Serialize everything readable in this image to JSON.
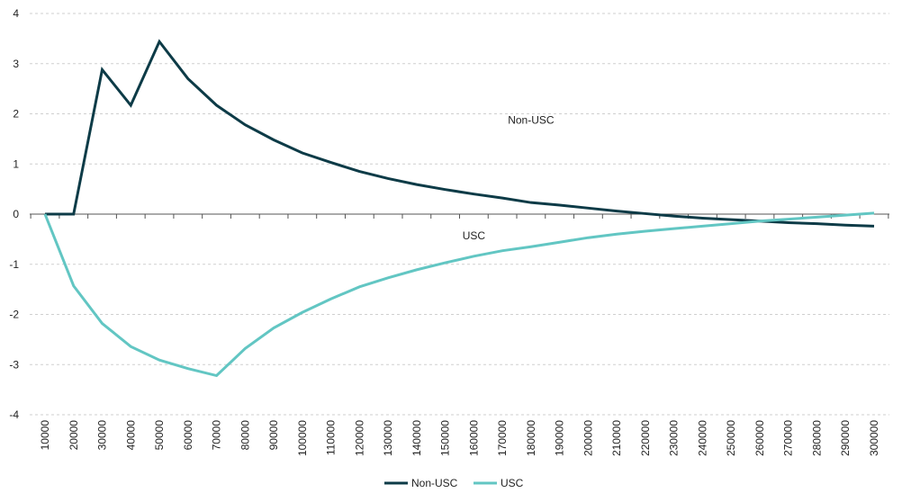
{
  "chart_data": {
    "type": "line",
    "title": "",
    "xlabel": "",
    "ylabel": "",
    "ylim": [
      -4,
      4
    ],
    "yticks": [
      "4",
      "3",
      "2",
      "1",
      "0",
      "-1",
      "-2",
      "-3",
      "-4"
    ],
    "categories": [
      "10000",
      "20000",
      "30000",
      "40000",
      "50000",
      "60000",
      "70000",
      "80000",
      "90000",
      "100000",
      "110000",
      "120000",
      "130000",
      "140000",
      "150000",
      "160000",
      "170000",
      "180000",
      "190000",
      "200000",
      "210000",
      "220000",
      "230000",
      "240000",
      "250000",
      "260000",
      "270000",
      "280000",
      "290000",
      "300000"
    ],
    "grid": true,
    "legend_position": "bottom",
    "series": [
      {
        "name": "Non-USC",
        "color": "#0d3b47",
        "values": [
          0,
          0,
          2.88,
          2.17,
          3.44,
          2.7,
          2.17,
          1.78,
          1.48,
          1.22,
          1.03,
          0.85,
          0.71,
          0.59,
          0.49,
          0.4,
          0.32,
          0.23,
          0.18,
          0.12,
          0.06,
          0.01,
          -0.04,
          -0.08,
          -0.11,
          -0.14,
          -0.17,
          -0.19,
          -0.22,
          -0.24
        ]
      },
      {
        "name": "USC",
        "color": "#62c6c3",
        "values": [
          0,
          -1.43,
          -2.18,
          -2.64,
          -2.91,
          -3.08,
          -3.22,
          -2.68,
          -2.27,
          -1.96,
          -1.69,
          -1.45,
          -1.27,
          -1.11,
          -0.97,
          -0.84,
          -0.73,
          -0.65,
          -0.56,
          -0.47,
          -0.4,
          -0.34,
          -0.29,
          -0.24,
          -0.19,
          -0.14,
          -0.1,
          -0.06,
          -0.02,
          0.02
        ]
      }
    ],
    "annotations": [
      {
        "text": "Non-USC",
        "x": "180000",
        "y": 1.8
      },
      {
        "text": "USC",
        "x": "160000",
        "y": -0.5
      }
    ]
  }
}
